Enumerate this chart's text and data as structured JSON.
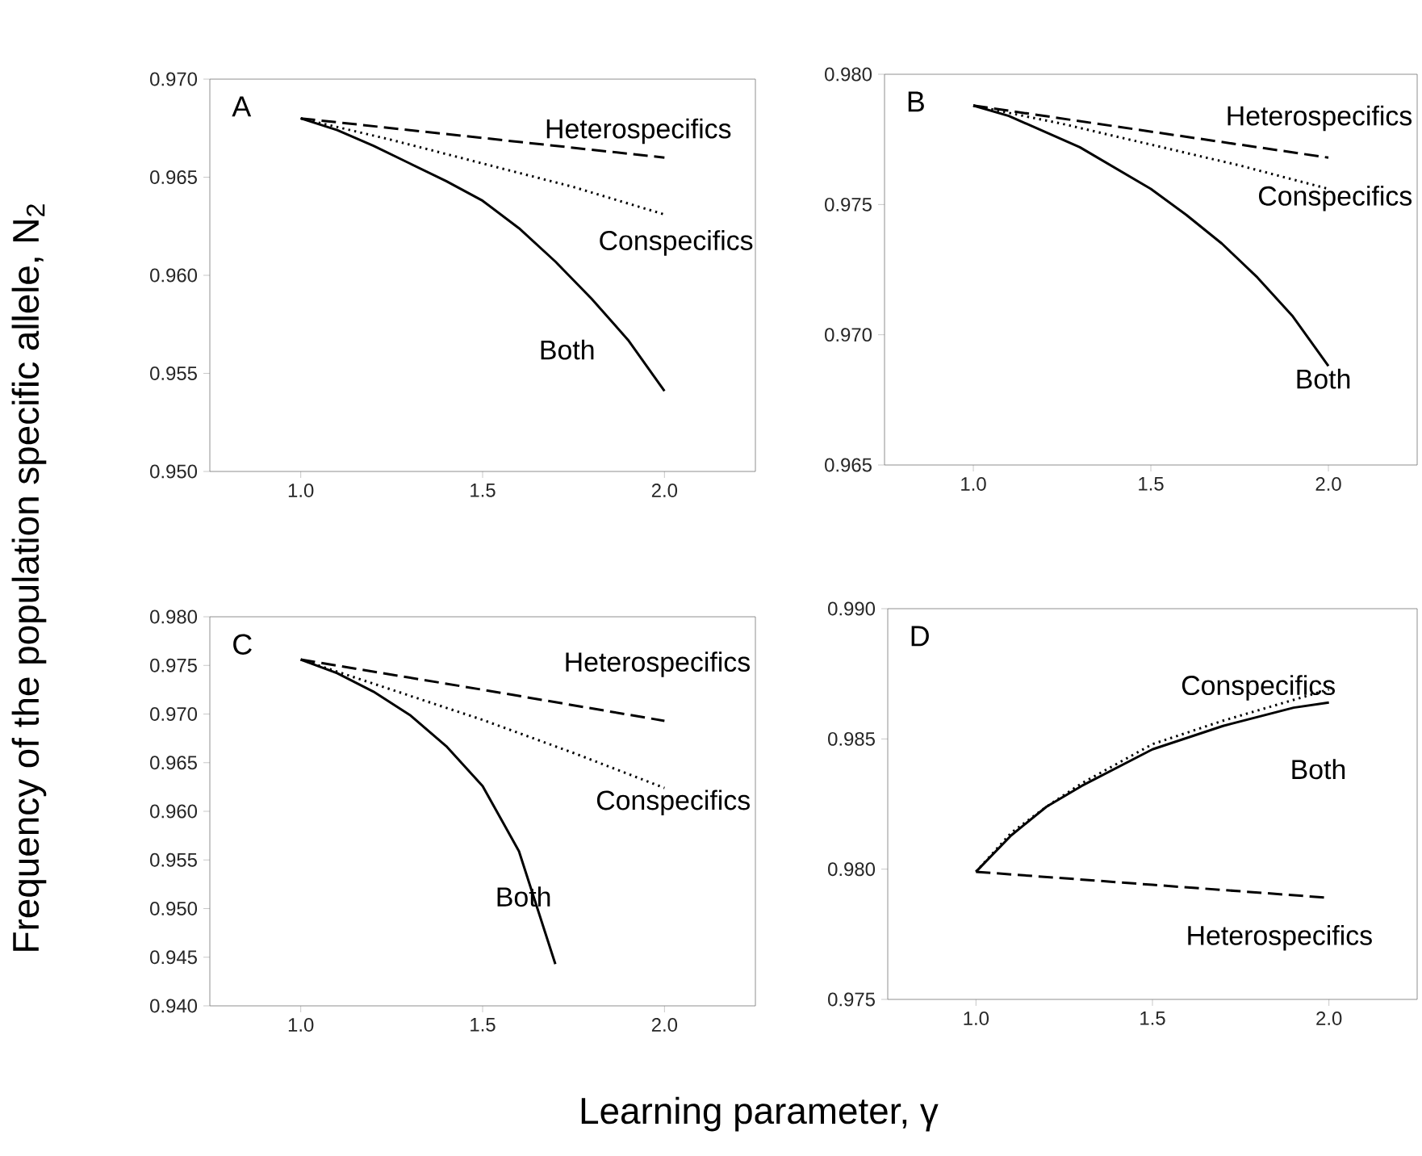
{
  "chart_data": [
    {
      "type": "line",
      "title": "A",
      "ylabel": "Frequency of the population specific allele, N$_{2}$",
      "xlabel": "Learning parameter, γ",
      "xlim": [
        0.75,
        2.25
      ],
      "xticks": [
        {
          "value": 1.0,
          "label": "1.0"
        },
        {
          "value": 1.5,
          "label": "1.5"
        },
        {
          "value": 2.0,
          "label": "2.0"
        }
      ],
      "ylim": [
        0.95,
        0.97
      ],
      "yticks": [
        {
          "value": 0.95,
          "label": "0.950"
        },
        {
          "value": 0.955,
          "label": "0.955"
        },
        {
          "value": 0.96,
          "label": "0.960"
        },
        {
          "value": 0.965,
          "label": "0.965"
        },
        {
          "value": 0.97,
          "label": "0.970"
        }
      ],
      "grid": false,
      "legend": false,
      "marker": "none",
      "series": [
        {
          "name": "Heterospecifics",
          "color": "#000000",
          "line_style": "dashed",
          "x": [
            1.0,
            1.5,
            2.0
          ],
          "values": [
            0.968,
            0.967,
            0.966
          ]
        },
        {
          "name": "Conspecifics",
          "color": "#000000",
          "line_style": "dotted",
          "x": [
            1.0,
            1.25,
            1.5,
            1.75,
            2.0
          ],
          "values": [
            0.968,
            0.9669,
            0.9657,
            0.9645,
            0.9631
          ]
        },
        {
          "name": "Both",
          "color": "#000000",
          "line_style": "solid",
          "x": [
            1.0,
            1.1,
            1.2,
            1.3,
            1.4,
            1.5,
            1.6,
            1.7,
            1.8,
            1.9,
            2.0
          ],
          "values": [
            0.968,
            0.9674,
            0.9666,
            0.9657,
            0.9648,
            0.9638,
            0.9624,
            0.9607,
            0.9588,
            0.9567,
            0.9541
          ]
        }
      ]
    },
    {
      "type": "line",
      "title": "B",
      "xlim": [
        0.75,
        2.25
      ],
      "xticks": [
        {
          "value": 1.0,
          "label": "1.0"
        },
        {
          "value": 1.5,
          "label": "1.5"
        },
        {
          "value": 2.0,
          "label": "2.0"
        }
      ],
      "ylim": [
        0.965,
        0.98
      ],
      "yticks": [
        {
          "value": 0.965,
          "label": "0.965"
        },
        {
          "value": 0.97,
          "label": "0.970"
        },
        {
          "value": 0.975,
          "label": "0.975"
        },
        {
          "value": 0.98,
          "label": "0.980"
        }
      ],
      "grid": false,
      "legend": false,
      "marker": "none",
      "series": [
        {
          "name": "Heterospecifics",
          "color": "#000000",
          "line_style": "dashed",
          "x": [
            1.0,
            1.5,
            2.0
          ],
          "values": [
            0.9788,
            0.9778,
            0.9768
          ]
        },
        {
          "name": "Conspecifics",
          "color": "#000000",
          "line_style": "dotted",
          "x": [
            1.0,
            1.25,
            1.5,
            1.75,
            2.0
          ],
          "values": [
            0.9788,
            0.9781,
            0.9773,
            0.9765,
            0.9756
          ]
        },
        {
          "name": "Both",
          "color": "#000000",
          "line_style": "solid",
          "x": [
            1.0,
            1.1,
            1.2,
            1.3,
            1.4,
            1.5,
            1.6,
            1.7,
            1.8,
            1.9,
            2.0
          ],
          "values": [
            0.9788,
            0.9784,
            0.9778,
            0.9772,
            0.9764,
            0.9756,
            0.9746,
            0.9735,
            0.9722,
            0.9707,
            0.9688
          ]
        }
      ]
    },
    {
      "type": "line",
      "title": "C",
      "xlim": [
        0.75,
        2.25
      ],
      "xticks": [
        {
          "value": 1.0,
          "label": "1.0"
        },
        {
          "value": 1.5,
          "label": "1.5"
        },
        {
          "value": 2.0,
          "label": "2.0"
        }
      ],
      "ylim": [
        0.94,
        0.98
      ],
      "yticks": [
        {
          "value": 0.94,
          "label": "0.940"
        },
        {
          "value": 0.945,
          "label": "0.945"
        },
        {
          "value": 0.95,
          "label": "0.950"
        },
        {
          "value": 0.955,
          "label": "0.955"
        },
        {
          "value": 0.96,
          "label": "0.960"
        },
        {
          "value": 0.965,
          "label": "0.965"
        },
        {
          "value": 0.97,
          "label": "0.970"
        },
        {
          "value": 0.975,
          "label": "0.975"
        },
        {
          "value": 0.98,
          "label": "0.980"
        }
      ],
      "grid": false,
      "legend": false,
      "marker": "none",
      "series": [
        {
          "name": "Heterospecifics",
          "color": "#000000",
          "line_style": "dashed",
          "x": [
            1.0,
            1.5,
            2.0
          ],
          "values": [
            0.9756,
            0.9725,
            0.9693
          ]
        },
        {
          "name": "Conspecifics",
          "color": "#000000",
          "line_style": "dotted",
          "x": [
            1.0,
            1.25,
            1.5,
            1.75,
            2.0
          ],
          "values": [
            0.9756,
            0.9725,
            0.9694,
            0.966,
            0.9624
          ]
        },
        {
          "name": "Both",
          "color": "#000000",
          "line_style": "solid",
          "x": [
            1.0,
            1.1,
            1.2,
            1.3,
            1.4,
            1.5,
            1.6,
            1.7
          ],
          "values": [
            0.9756,
            0.9742,
            0.9723,
            0.9699,
            0.9667,
            0.9626,
            0.9559,
            0.9443
          ]
        }
      ]
    },
    {
      "type": "line",
      "title": "D",
      "xlim": [
        0.75,
        2.25
      ],
      "xticks": [
        {
          "value": 1.0,
          "label": "1.0"
        },
        {
          "value": 1.5,
          "label": "1.5"
        },
        {
          "value": 2.0,
          "label": "2.0"
        }
      ],
      "ylim": [
        0.975,
        0.99
      ],
      "yticks": [
        {
          "value": 0.975,
          "label": "0.975"
        },
        {
          "value": 0.98,
          "label": "0.980"
        },
        {
          "value": 0.985,
          "label": "0.985"
        },
        {
          "value": 0.99,
          "label": "0.990"
        }
      ],
      "grid": false,
      "legend": false,
      "marker": "none",
      "series": [
        {
          "name": "Conspecifics",
          "color": "#000000",
          "line_style": "dotted",
          "x": [
            1.0,
            1.1,
            1.2,
            1.3,
            1.5,
            1.7,
            1.9,
            2.0
          ],
          "values": [
            0.9799,
            0.9814,
            0.9824,
            0.9833,
            0.9848,
            0.9857,
            0.9865,
            0.9869
          ]
        },
        {
          "name": "Both",
          "color": "#000000",
          "line_style": "solid",
          "x": [
            1.0,
            1.1,
            1.2,
            1.3,
            1.5,
            1.7,
            1.9,
            2.0
          ],
          "values": [
            0.9799,
            0.9813,
            0.9824,
            0.9832,
            0.9846,
            0.9855,
            0.9862,
            0.9864
          ]
        },
        {
          "name": "Heterospecifics",
          "color": "#000000",
          "line_style": "dashed",
          "x": [
            1.0,
            1.5,
            2.0
          ],
          "values": [
            0.9799,
            0.9794,
            0.9789
          ]
        }
      ]
    }
  ]
}
